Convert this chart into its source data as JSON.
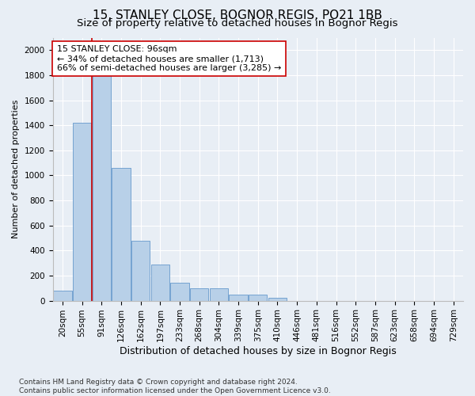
{
  "title1": "15, STANLEY CLOSE, BOGNOR REGIS, PO21 1BB",
  "title2": "Size of property relative to detached houses in Bognor Regis",
  "xlabel": "Distribution of detached houses by size in Bognor Regis",
  "ylabel": "Number of detached properties",
  "bar_labels": [
    "20sqm",
    "55sqm",
    "91sqm",
    "126sqm",
    "162sqm",
    "197sqm",
    "233sqm",
    "268sqm",
    "304sqm",
    "339sqm",
    "375sqm",
    "410sqm",
    "446sqm",
    "481sqm",
    "516sqm",
    "552sqm",
    "587sqm",
    "623sqm",
    "658sqm",
    "694sqm",
    "729sqm"
  ],
  "bar_heights": [
    80,
    1420,
    1950,
    1060,
    480,
    290,
    145,
    100,
    100,
    50,
    50,
    20,
    0,
    0,
    0,
    0,
    0,
    0,
    0,
    0,
    0
  ],
  "bar_color": "#b8d0e8",
  "bar_edge_color": "#6699cc",
  "vline_color": "#cc0000",
  "annotation_text": "15 STANLEY CLOSE: 96sqm\n← 34% of detached houses are smaller (1,713)\n66% of semi-detached houses are larger (3,285) →",
  "annotation_box_color": "#ffffff",
  "annotation_box_edge_color": "#cc0000",
  "ylim": [
    0,
    2100
  ],
  "yticks": [
    0,
    200,
    400,
    600,
    800,
    1000,
    1200,
    1400,
    1600,
    1800,
    2000
  ],
  "bg_color": "#e8eef5",
  "axes_bg_color": "#e8eef5",
  "footer": "Contains HM Land Registry data © Crown copyright and database right 2024.\nContains public sector information licensed under the Open Government Licence v3.0.",
  "title1_fontsize": 11,
  "title2_fontsize": 9.5,
  "xlabel_fontsize": 9,
  "ylabel_fontsize": 8,
  "tick_fontsize": 7.5,
  "annotation_fontsize": 8,
  "footer_fontsize": 6.5
}
